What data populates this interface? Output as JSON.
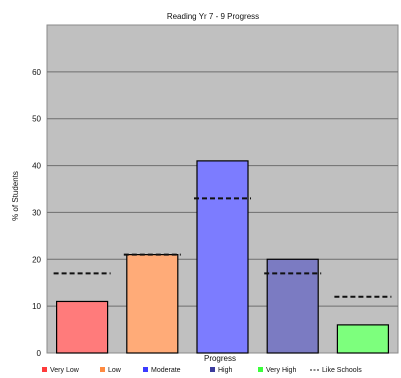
{
  "chart_data": {
    "type": "bar",
    "title": "Reading Yr 7 - 9 Progress",
    "xlabel": "Progress",
    "ylabel": "% of Students",
    "ylim": [
      0,
      70
    ],
    "yticks": [
      0,
      10,
      20,
      30,
      40,
      50,
      60
    ],
    "grid": true,
    "legend_position": "bottom",
    "categories": [
      "Very Low",
      "Low",
      "Moderate",
      "High",
      "Very High"
    ],
    "colors": [
      "#ff7b7b",
      "#ffab78",
      "#7c7cff",
      "#7b7bc2",
      "#7dff7d"
    ],
    "series": [
      {
        "values": [
          11,
          21,
          41,
          20,
          6
        ]
      },
      {
        "name": "Like Schools",
        "values": [
          17,
          21,
          33,
          17,
          12
        ]
      }
    ],
    "plot_background": "#c0c0c0",
    "legend": [
      {
        "label": "Very Low",
        "color": "#ff3b3b"
      },
      {
        "label": "Low",
        "color": "#ff8a40"
      },
      {
        "label": "Moderate",
        "color": "#3b3bff"
      },
      {
        "label": "High",
        "color": "#3b3b9c"
      },
      {
        "label": "Very High",
        "color": "#3bff3b"
      },
      {
        "label": "Like Schools",
        "color": "#444444"
      }
    ]
  }
}
